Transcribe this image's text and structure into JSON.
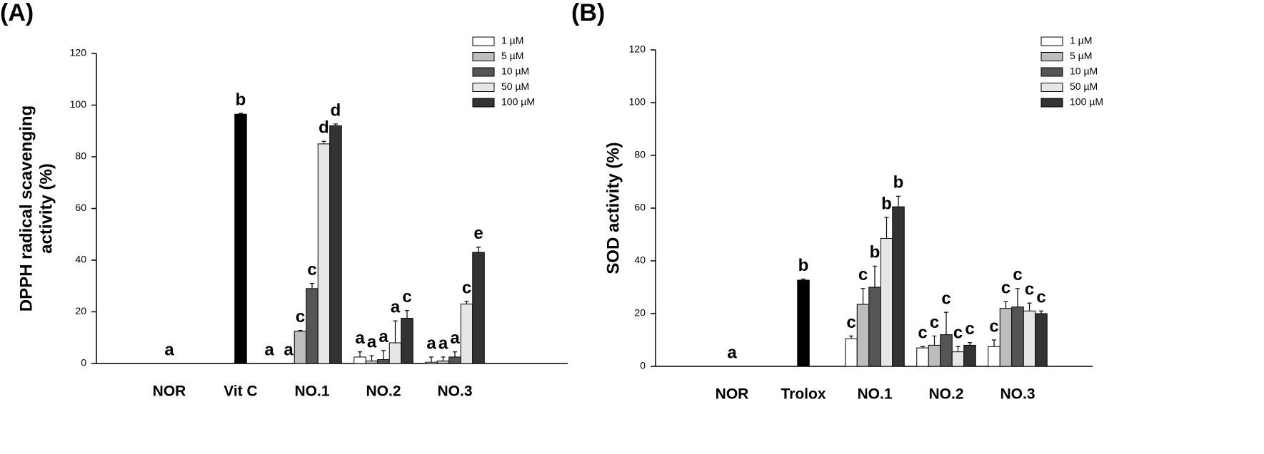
{
  "chart_data": [
    {
      "type": "bar",
      "panel": "(A)",
      "y_label": [
        "DPPH radical scavenging",
        "activity (%)"
      ],
      "categories": [
        "NOR",
        "Vit C",
        "NO.1",
        "NO.2",
        "NO.3"
      ],
      "control": {
        "color": "#000000",
        "values": [
          0,
          96.5
        ],
        "errors": [
          null,
          0.3
        ],
        "letters": [
          "a",
          "b"
        ]
      },
      "series": [
        {
          "name": "1 µM",
          "color": "#ffffff",
          "values": [
            null,
            null,
            0,
            2.5,
            0.5
          ],
          "errors": [
            null,
            null,
            null,
            2,
            2
          ],
          "letters": [
            null,
            null,
            "a",
            "a",
            "a"
          ]
        },
        {
          "name": "5 µM",
          "color": "#bdbdbd",
          "values": [
            null,
            null,
            12.5,
            1,
            1
          ],
          "errors": [
            null,
            null,
            0.3,
            2,
            1.5
          ],
          "letters": [
            null,
            null,
            "c",
            "a",
            "a"
          ]
        },
        {
          "name": "10 µM",
          "color": "#555555",
          "values": [
            null,
            null,
            29,
            1.5,
            2.5
          ],
          "errors": [
            null,
            null,
            2,
            3.5,
            2
          ],
          "letters": [
            null,
            null,
            "c",
            "a",
            "a"
          ]
        },
        {
          "name": "50 µM",
          "color": "#e6e6e6",
          "values": [
            null,
            null,
            85,
            8,
            23
          ],
          "errors": [
            null,
            null,
            1,
            8.5,
            1
          ],
          "letters": [
            null,
            null,
            "d",
            "a",
            "c"
          ]
        },
        {
          "name": "100 µM",
          "color": "#333333",
          "values": [
            null,
            null,
            92,
            17.5,
            43
          ],
          "errors": [
            null,
            null,
            0.7,
            3,
            2
          ],
          "letters": [
            null,
            null,
            "d",
            "c",
            "e"
          ]
        }
      ],
      "annotations": [
        "a"
      ],
      "ylim": [
        0,
        120
      ],
      "yticks": [
        0,
        20,
        40,
        60,
        80,
        100,
        120
      ]
    },
    {
      "type": "bar",
      "panel": "(B)",
      "y_label": [
        "SOD activity (%)"
      ],
      "categories": [
        "NOR",
        "Trolox",
        "NO.1",
        "NO.2",
        "NO.3"
      ],
      "control": {
        "color": "#000000",
        "values": [
          0,
          32.7
        ],
        "errors": [
          null,
          0.4
        ],
        "letters": [
          "a",
          "b"
        ]
      },
      "series": [
        {
          "name": "1 µM",
          "color": "#ffffff",
          "values": [
            null,
            null,
            10.5,
            7,
            7.5
          ],
          "errors": [
            null,
            null,
            1,
            0.5,
            2.5
          ],
          "letters": [
            null,
            null,
            "c",
            "c",
            "c"
          ]
        },
        {
          "name": "5 µM",
          "color": "#bdbdbd",
          "values": [
            null,
            null,
            23.5,
            8,
            22
          ],
          "errors": [
            null,
            null,
            6,
            3.5,
            2.5
          ],
          "letters": [
            null,
            null,
            "c",
            "c",
            "c"
          ]
        },
        {
          "name": "10 µM",
          "color": "#555555",
          "values": [
            null,
            null,
            30,
            12,
            22.5
          ],
          "errors": [
            null,
            null,
            8,
            8.5,
            7
          ],
          "letters": [
            null,
            null,
            "b",
            "c",
            "c"
          ]
        },
        {
          "name": "50 µM",
          "color": "#e6e6e6",
          "values": [
            null,
            null,
            48.5,
            5.5,
            21
          ],
          "errors": [
            null,
            null,
            8,
            2,
            3
          ],
          "letters": [
            null,
            null,
            "b",
            "c",
            "c"
          ]
        },
        {
          "name": "100 µM",
          "color": "#333333",
          "values": [
            null,
            null,
            60.5,
            8,
            20
          ],
          "errors": [
            null,
            null,
            4,
            1,
            1
          ],
          "letters": [
            null,
            null,
            "b",
            "c",
            "c"
          ]
        }
      ],
      "annotations": [],
      "ylim": [
        0,
        120
      ],
      "yticks": [
        0,
        20,
        40,
        60,
        80,
        100,
        120
      ]
    }
  ]
}
